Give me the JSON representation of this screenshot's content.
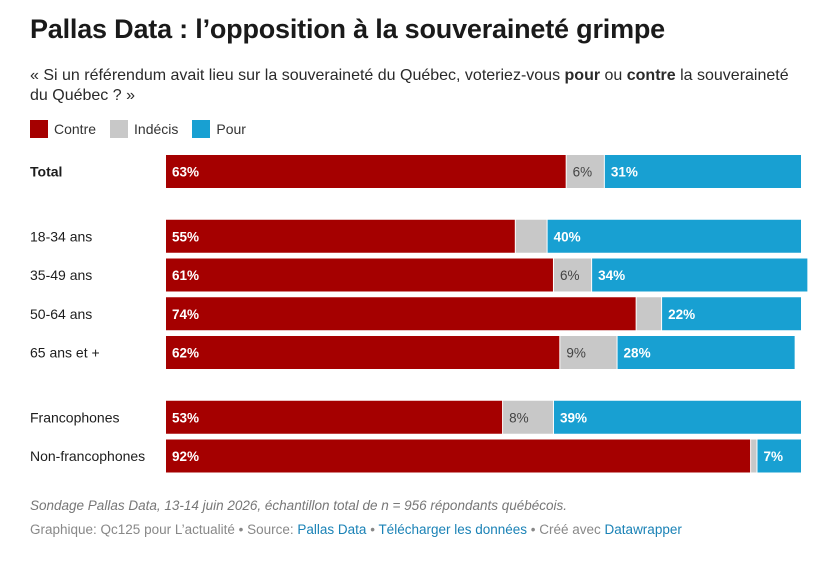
{
  "header": {
    "title": "Pallas Data : l’opposition à la souveraineté grimpe",
    "subtitle_pre": "« Si un référendum avait lieu sur la souveraineté du Québec, voteriez-vous ",
    "subtitle_bold1": "pour",
    "subtitle_mid": " ou ",
    "subtitle_bold2": "contre",
    "subtitle_post": " la souveraineté du Québec ? »"
  },
  "legend": [
    {
      "label": "Contre",
      "color": "#a50000"
    },
    {
      "label": "Indécis",
      "color": "#c8c8c8"
    },
    {
      "label": "Pour",
      "color": "#18a0d2"
    }
  ],
  "chart_data": {
    "type": "bar",
    "orientation": "horizontal",
    "stacked": true,
    "stack_total": 100,
    "series_names": [
      "Contre",
      "Indécis",
      "Pour"
    ],
    "series_colors": [
      "#a50000",
      "#c8c8c8",
      "#18a0d2"
    ],
    "label_colors": [
      "#ffffff",
      "#444444",
      "#ffffff"
    ],
    "groups": [
      {
        "rows": [
          {
            "category": "Total",
            "bold": true,
            "values": [
              63,
              6,
              31
            ],
            "labels": [
              "63%",
              "6%",
              "31%"
            ]
          }
        ]
      },
      {
        "rows": [
          {
            "category": "18-34 ans",
            "values": [
              55,
              5,
              40
            ],
            "labels": [
              "55%",
              "",
              "40%"
            ]
          },
          {
            "category": "35-49 ans",
            "values": [
              61,
              6,
              34
            ],
            "labels": [
              "61%",
              "6%",
              "34%"
            ]
          },
          {
            "category": "50-64 ans",
            "values": [
              74,
              4,
              22
            ],
            "labels": [
              "74%",
              "",
              "22%"
            ]
          },
          {
            "category": "65 ans et +",
            "values": [
              62,
              9,
              28
            ],
            "labels": [
              "62%",
              "9%",
              "28%"
            ]
          }
        ]
      },
      {
        "rows": [
          {
            "category": "Francophones",
            "values": [
              53,
              8,
              39
            ],
            "labels": [
              "53%",
              "8%",
              "39%"
            ]
          },
          {
            "category": "Non-francophones",
            "values": [
              92,
              1,
              7
            ],
            "labels": [
              "92%",
              "",
              "7%"
            ]
          }
        ]
      }
    ]
  },
  "notes": "Sondage Pallas Data, 13-14 juin 2026, échantillon total de n = 956 répondants québécois.",
  "footer": {
    "prefix": "Graphique: Qc125 pour L’actualité",
    "sep": " • ",
    "source_label": "Source: ",
    "source_link": "Pallas Data",
    "download_link": "Télécharger les données",
    "created_label": "Créé avec ",
    "created_link": "Datawrapper"
  }
}
